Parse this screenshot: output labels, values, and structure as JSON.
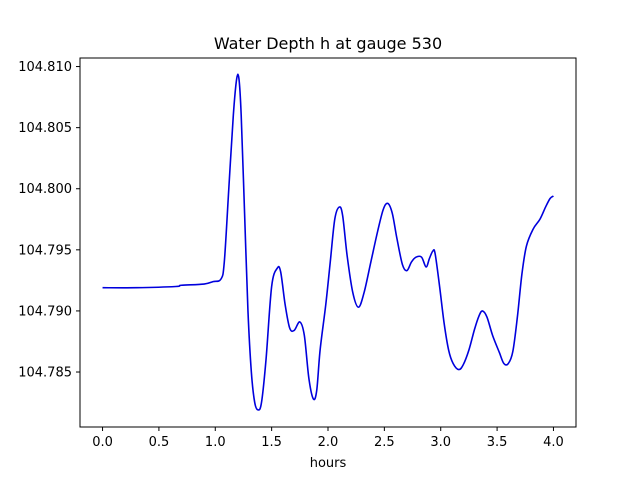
{
  "chart_data": {
    "type": "line",
    "title": "Water Depth h at gauge 530",
    "xlabel": "hours",
    "ylabel": "",
    "xlim": [
      -0.2,
      4.2
    ],
    "ylim": [
      104.7805,
      104.8107
    ],
    "xticks": [
      0.0,
      0.5,
      1.0,
      1.5,
      2.0,
      2.5,
      3.0,
      3.5,
      4.0
    ],
    "xtick_labels": [
      "0.0",
      "0.5",
      "1.0",
      "1.5",
      "2.0",
      "2.5",
      "3.0",
      "3.5",
      "4.0"
    ],
    "yticks": [
      104.785,
      104.79,
      104.795,
      104.8,
      104.805,
      104.81
    ],
    "ytick_labels": [
      "104.785",
      "104.790",
      "104.795",
      "104.800",
      "104.805",
      "104.810"
    ],
    "grid": false,
    "series": [
      {
        "color": "#0000dd",
        "points": [
          [
            0.0,
            104.7919
          ],
          [
            0.3,
            104.7919
          ],
          [
            0.65,
            104.792
          ],
          [
            0.7,
            104.7921
          ],
          [
            0.9,
            104.7922
          ],
          [
            0.98,
            104.7924
          ],
          [
            1.05,
            104.7926
          ],
          [
            1.08,
            104.794
          ],
          [
            1.12,
            104.8
          ],
          [
            1.16,
            104.806
          ],
          [
            1.19,
            104.809
          ],
          [
            1.21,
            104.809
          ],
          [
            1.23,
            104.806
          ],
          [
            1.26,
            104.798
          ],
          [
            1.29,
            104.79
          ],
          [
            1.32,
            104.785
          ],
          [
            1.35,
            104.7825
          ],
          [
            1.38,
            104.7819
          ],
          [
            1.41,
            104.7825
          ],
          [
            1.45,
            104.786
          ],
          [
            1.5,
            104.792
          ],
          [
            1.55,
            104.7935
          ],
          [
            1.58,
            104.7932
          ],
          [
            1.62,
            104.7905
          ],
          [
            1.66,
            104.7886
          ],
          [
            1.7,
            104.7884
          ],
          [
            1.75,
            104.7891
          ],
          [
            1.79,
            104.788
          ],
          [
            1.83,
            104.7845
          ],
          [
            1.87,
            104.7828
          ],
          [
            1.9,
            104.7835
          ],
          [
            1.93,
            104.7868
          ],
          [
            1.98,
            104.7905
          ],
          [
            2.02,
            104.794
          ],
          [
            2.06,
            104.7975
          ],
          [
            2.1,
            104.7985
          ],
          [
            2.13,
            104.7978
          ],
          [
            2.17,
            104.7945
          ],
          [
            2.22,
            104.7915
          ],
          [
            2.27,
            104.7903
          ],
          [
            2.32,
            104.7915
          ],
          [
            2.38,
            104.794
          ],
          [
            2.44,
            104.7965
          ],
          [
            2.49,
            104.7983
          ],
          [
            2.53,
            104.7988
          ],
          [
            2.57,
            104.798
          ],
          [
            2.61,
            104.796
          ],
          [
            2.66,
            104.7938
          ],
          [
            2.7,
            104.7933
          ],
          [
            2.74,
            104.794
          ],
          [
            2.78,
            104.7944
          ],
          [
            2.83,
            104.7944
          ],
          [
            2.87,
            104.7936
          ],
          [
            2.9,
            104.7943
          ],
          [
            2.93,
            104.7949
          ],
          [
            2.95,
            104.7947
          ],
          [
            2.99,
            104.792
          ],
          [
            3.03,
            104.789
          ],
          [
            3.07,
            104.7868
          ],
          [
            3.11,
            104.7857
          ],
          [
            3.16,
            104.7852
          ],
          [
            3.2,
            104.7856
          ],
          [
            3.25,
            104.7868
          ],
          [
            3.3,
            104.7885
          ],
          [
            3.34,
            104.7896
          ],
          [
            3.37,
            104.79
          ],
          [
            3.41,
            104.7895
          ],
          [
            3.46,
            104.788
          ],
          [
            3.52,
            104.7866
          ],
          [
            3.56,
            104.7857
          ],
          [
            3.6,
            104.7857
          ],
          [
            3.64,
            104.7867
          ],
          [
            3.68,
            104.7895
          ],
          [
            3.72,
            104.793
          ],
          [
            3.76,
            104.7953
          ],
          [
            3.82,
            104.7967
          ],
          [
            3.88,
            104.7975
          ],
          [
            3.93,
            104.7985
          ],
          [
            3.97,
            104.7992
          ],
          [
            4.0,
            104.7994
          ]
        ]
      }
    ]
  }
}
